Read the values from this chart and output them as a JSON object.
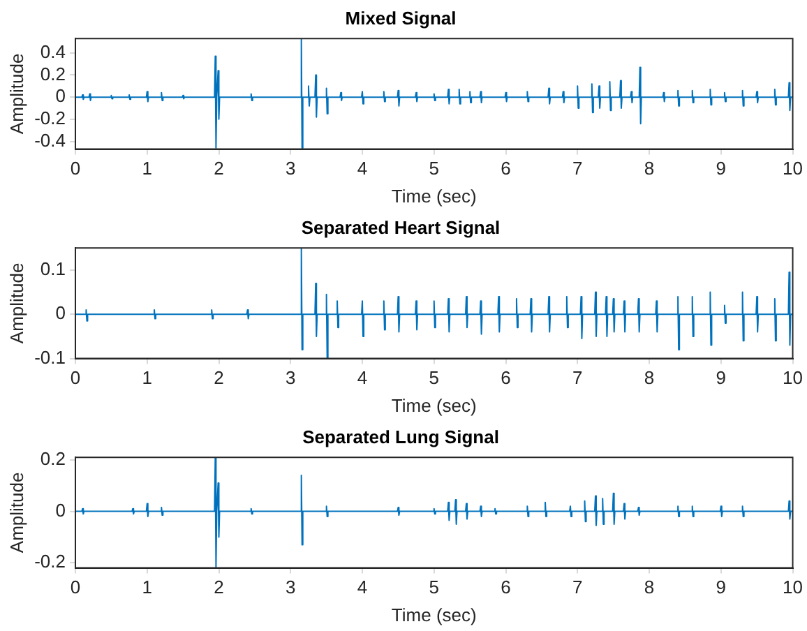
{
  "chart_data": [
    {
      "type": "line",
      "title": "Mixed Signal",
      "xlabel": "Time (sec)",
      "ylabel": "Amplitude",
      "color": "#0072bd",
      "xlim": [
        0,
        10
      ],
      "xticks": [
        0,
        1,
        2,
        3,
        4,
        5,
        6,
        7,
        8,
        9,
        10
      ],
      "ylim": [
        -0.47,
        0.53
      ],
      "yticks": [
        -0.4,
        -0.2,
        0,
        0.2,
        0.4
      ],
      "grid": false,
      "x": [
        0,
        0.09,
        0.1,
        0.11,
        0.12,
        0.19,
        0.2,
        0.21,
        0.22,
        0.49,
        0.5,
        0.51,
        0.52,
        0.74,
        0.75,
        0.76,
        0.77,
        0.99,
        1,
        1.01,
        1.02,
        1.19,
        1.2,
        1.21,
        1.22,
        1.49,
        1.5,
        1.51,
        1.52,
        1.94,
        1.95,
        1.96,
        1.97,
        1.98,
        1.99,
        2,
        2.01,
        2.44,
        2.45,
        2.46,
        2.47,
        3.14,
        3.15,
        3.16,
        3.17,
        3.24,
        3.25,
        3.26,
        3.27,
        3.34,
        3.35,
        3.36,
        3.37,
        3.49,
        3.5,
        3.51,
        3.52,
        3.69,
        3.7,
        3.71,
        3.72,
        3.99,
        4,
        4.01,
        4.02,
        4.29,
        4.3,
        4.31,
        4.32,
        4.49,
        4.5,
        4.51,
        4.52,
        4.74,
        4.75,
        4.76,
        4.77,
        4.99,
        5,
        5.01,
        5.02,
        5.19,
        5.2,
        5.21,
        5.22,
        5.34,
        5.35,
        5.36,
        5.37,
        5.49,
        5.5,
        5.51,
        5.52,
        5.64,
        5.65,
        5.66,
        5.67,
        5.99,
        6,
        6.01,
        6.02,
        6.29,
        6.3,
        6.31,
        6.32,
        6.59,
        6.6,
        6.61,
        6.62,
        6.79,
        6.8,
        6.81,
        6.82,
        6.99,
        7,
        7.01,
        7.02,
        7.19,
        7.2,
        7.21,
        7.22,
        7.29,
        7.3,
        7.31,
        7.32,
        7.44,
        7.45,
        7.46,
        7.47,
        7.59,
        7.6,
        7.61,
        7.62,
        7.74,
        7.75,
        7.76,
        7.77,
        7.86,
        7.87,
        7.88,
        7.89,
        8.19,
        8.2,
        8.21,
        8.22,
        8.39,
        8.4,
        8.41,
        8.42,
        8.59,
        8.6,
        8.61,
        8.62,
        8.84,
        8.85,
        8.86,
        8.87,
        9.04,
        9.05,
        9.06,
        9.07,
        9.29,
        9.3,
        9.31,
        9.32,
        9.49,
        9.5,
        9.51,
        9.52,
        9.74,
        9.75,
        9.76,
        9.77,
        9.94,
        9.95,
        9.96,
        9.97,
        10
      ],
      "values": [
        0,
        0,
        0.02,
        -0.02,
        0,
        0,
        0.03,
        -0.03,
        0,
        0,
        0.015,
        -0.015,
        0,
        0,
        0.02,
        -0.02,
        0,
        0,
        0.05,
        -0.04,
        0,
        0,
        0.04,
        -0.03,
        0,
        0,
        0.015,
        -0.015,
        0,
        0,
        0.37,
        -0.46,
        0,
        0,
        0.24,
        -0.2,
        0,
        0,
        0.03,
        -0.03,
        0,
        0,
        0.53,
        -0.46,
        0,
        0,
        0.1,
        -0.08,
        0,
        0,
        0.2,
        -0.18,
        0,
        0,
        0.08,
        -0.15,
        0,
        0,
        0.04,
        -0.03,
        0,
        0,
        0.05,
        -0.06,
        0,
        0,
        0.05,
        -0.04,
        0,
        0,
        0.06,
        -0.08,
        0,
        0,
        0.04,
        -0.04,
        0,
        0,
        0.03,
        -0.03,
        0,
        0,
        0.07,
        -0.06,
        0,
        0,
        0.07,
        -0.06,
        0,
        0,
        0.05,
        -0.05,
        0,
        0,
        0.05,
        -0.05,
        0,
        0,
        0.04,
        -0.04,
        0,
        0,
        0.05,
        -0.04,
        0,
        0,
        0.08,
        -0.06,
        0,
        0,
        0.05,
        -0.05,
        0,
        0,
        0.1,
        -0.1,
        0,
        0,
        0.12,
        -0.14,
        0,
        0,
        0.1,
        -0.1,
        0,
        0,
        0.14,
        -0.12,
        0,
        0,
        0.15,
        -0.1,
        0,
        0,
        0.05,
        -0.05,
        0,
        0,
        0.27,
        -0.24,
        0,
        0,
        0.04,
        -0.04,
        0,
        0,
        0.06,
        -0.08,
        0,
        0,
        0.06,
        -0.05,
        0,
        0,
        0.07,
        -0.07,
        0,
        0,
        0.04,
        -0.04,
        0,
        0,
        0.06,
        -0.08,
        0,
        0,
        0.05,
        -0.05,
        0,
        0,
        0.07,
        -0.07,
        0,
        0,
        0.13,
        -0.12,
        0,
        0
      ]
    },
    {
      "type": "line",
      "title": "Separated Heart Signal",
      "xlabel": "Time (sec)",
      "ylabel": "Amplitude",
      "color": "#0072bd",
      "xlim": [
        0,
        10
      ],
      "xticks": [
        0,
        1,
        2,
        3,
        4,
        5,
        6,
        7,
        8,
        9,
        10
      ],
      "ylim": [
        -0.1,
        0.15
      ],
      "yticks": [
        -0.1,
        0,
        0.1
      ],
      "grid": false,
      "x": [
        0,
        0.14,
        0.15,
        0.16,
        0.17,
        1.09,
        1.1,
        1.11,
        1.12,
        1.89,
        1.9,
        1.91,
        1.92,
        2.39,
        2.4,
        2.41,
        2.42,
        3.14,
        3.15,
        3.16,
        3.17,
        3.34,
        3.35,
        3.36,
        3.37,
        3.49,
        3.5,
        3.51,
        3.52,
        3.64,
        3.65,
        3.66,
        3.67,
        3.99,
        4,
        4.01,
        4.02,
        4.29,
        4.3,
        4.31,
        4.32,
        4.49,
        4.5,
        4.51,
        4.52,
        4.74,
        4.75,
        4.76,
        4.77,
        4.99,
        5,
        5.01,
        5.02,
        5.19,
        5.2,
        5.21,
        5.22,
        5.44,
        5.45,
        5.46,
        5.47,
        5.64,
        5.65,
        5.66,
        5.67,
        5.89,
        5.9,
        5.91,
        5.92,
        6.14,
        6.15,
        6.16,
        6.17,
        6.34,
        6.35,
        6.36,
        6.37,
        6.59,
        6.6,
        6.61,
        6.62,
        6.84,
        6.85,
        6.86,
        6.87,
        7.04,
        7.05,
        7.06,
        7.07,
        7.24,
        7.25,
        7.26,
        7.27,
        7.39,
        7.4,
        7.41,
        7.42,
        7.49,
        7.5,
        7.51,
        7.52,
        7.64,
        7.65,
        7.66,
        7.67,
        7.84,
        7.85,
        7.86,
        7.87,
        8.09,
        8.1,
        8.11,
        8.12,
        8.39,
        8.4,
        8.41,
        8.42,
        8.59,
        8.6,
        8.61,
        8.62,
        8.84,
        8.85,
        8.86,
        8.87,
        9.04,
        9.05,
        9.06,
        9.07,
        9.29,
        9.3,
        9.31,
        9.32,
        9.49,
        9.5,
        9.51,
        9.52,
        9.74,
        9.75,
        9.76,
        9.77,
        9.94,
        9.95,
        9.96,
        9.97,
        10
      ],
      "values": [
        0,
        0,
        0.01,
        -0.015,
        0,
        0,
        0.01,
        -0.01,
        0,
        0,
        0.01,
        -0.01,
        0,
        0,
        0.01,
        -0.01,
        0,
        0,
        0.15,
        -0.08,
        0,
        0,
        0.07,
        -0.05,
        0,
        0,
        0.045,
        -0.1,
        0,
        0,
        0.03,
        -0.03,
        0,
        0,
        0.03,
        -0.05,
        0,
        0,
        0.03,
        -0.035,
        0,
        0,
        0.04,
        -0.04,
        0,
        0,
        0.03,
        -0.035,
        0,
        0,
        0.03,
        -0.03,
        0,
        0,
        0.035,
        -0.04,
        0,
        0,
        0.04,
        -0.03,
        0,
        0,
        0.03,
        -0.045,
        0,
        0,
        0.04,
        -0.04,
        0,
        0,
        0.035,
        -0.03,
        0,
        0,
        0.035,
        -0.04,
        0,
        0,
        0.04,
        -0.04,
        0,
        0,
        0.04,
        -0.03,
        0,
        0,
        0.04,
        -0.055,
        0,
        0,
        0.05,
        -0.05,
        0,
        0,
        0.04,
        -0.05,
        0,
        0,
        0.035,
        -0.04,
        0,
        0,
        0.03,
        -0.04,
        0,
        0,
        0.035,
        -0.04,
        0,
        0,
        0.03,
        -0.04,
        0,
        0,
        0.04,
        -0.08,
        0,
        0,
        0.04,
        -0.05,
        0,
        0,
        0.05,
        -0.07,
        0,
        0,
        0.02,
        -0.02,
        0,
        0,
        0.05,
        -0.06,
        0,
        0,
        0.04,
        -0.04,
        0,
        0,
        0.035,
        -0.06,
        0,
        0,
        0.095,
        -0.07,
        0,
        0
      ]
    },
    {
      "type": "line",
      "title": "Separated Lung Signal",
      "xlabel": "Time (sec)",
      "ylabel": "Amplitude",
      "color": "#0072bd",
      "xlim": [
        0,
        10
      ],
      "xticks": [
        0,
        1,
        2,
        3,
        4,
        5,
        6,
        7,
        8,
        9,
        10
      ],
      "ylim": [
        -0.22,
        0.21
      ],
      "yticks": [
        -0.2,
        0,
        0.2
      ],
      "grid": false,
      "x": [
        0,
        0.09,
        0.1,
        0.11,
        0.12,
        0.79,
        0.8,
        0.81,
        0.82,
        0.99,
        1,
        1.01,
        1.02,
        1.19,
        1.2,
        1.21,
        1.22,
        1.94,
        1.95,
        1.96,
        1.97,
        1.98,
        1.99,
        2,
        2.01,
        2.44,
        2.45,
        2.46,
        2.47,
        3.14,
        3.15,
        3.16,
        3.17,
        3.49,
        3.5,
        3.51,
        3.52,
        4.49,
        4.5,
        4.51,
        4.52,
        4.99,
        5,
        5.01,
        5.02,
        5.19,
        5.2,
        5.21,
        5.22,
        5.29,
        5.3,
        5.31,
        5.32,
        5.44,
        5.45,
        5.46,
        5.47,
        5.64,
        5.65,
        5.66,
        5.67,
        5.84,
        5.85,
        5.86,
        5.87,
        6.29,
        6.3,
        6.31,
        6.32,
        6.54,
        6.55,
        6.56,
        6.57,
        6.89,
        6.9,
        6.91,
        6.92,
        7.09,
        7.1,
        7.11,
        7.12,
        7.24,
        7.25,
        7.26,
        7.27,
        7.34,
        7.35,
        7.36,
        7.37,
        7.49,
        7.5,
        7.51,
        7.52,
        7.64,
        7.65,
        7.66,
        7.67,
        7.84,
        7.85,
        7.86,
        7.87,
        8.39,
        8.4,
        8.41,
        8.42,
        8.59,
        8.6,
        8.61,
        8.62,
        8.99,
        9,
        9.01,
        9.02,
        9.29,
        9.3,
        9.31,
        9.32,
        9.94,
        9.95,
        9.96,
        9.97,
        10
      ],
      "values": [
        0,
        0,
        0.01,
        -0.01,
        0,
        0,
        0.01,
        -0.01,
        0,
        0,
        0.03,
        -0.02,
        0,
        0,
        0.015,
        -0.015,
        0,
        0,
        0.21,
        -0.22,
        0,
        0,
        0.11,
        -0.1,
        0,
        0,
        0.01,
        -0.01,
        0,
        0,
        0.14,
        -0.13,
        0,
        0,
        0.02,
        -0.02,
        0,
        0,
        0.015,
        -0.015,
        0,
        0,
        0.01,
        -0.01,
        0,
        0,
        0.035,
        -0.035,
        0,
        0,
        0.045,
        -0.05,
        0,
        0,
        0.03,
        -0.03,
        0,
        0,
        0.02,
        -0.02,
        0,
        0,
        0.01,
        -0.01,
        0,
        0,
        0.02,
        -0.02,
        0,
        0,
        0.035,
        -0.02,
        0,
        0,
        0.02,
        -0.02,
        0,
        0,
        0.04,
        -0.04,
        0,
        0,
        0.06,
        -0.055,
        0,
        0,
        0.05,
        -0.05,
        0,
        0,
        0.07,
        -0.05,
        0,
        0,
        0.03,
        -0.03,
        0,
        0,
        0.015,
        -0.015,
        0,
        0,
        0.02,
        -0.02,
        0,
        0,
        0.02,
        -0.02,
        0,
        0,
        0.02,
        -0.02,
        0,
        0,
        0.02,
        -0.02,
        0,
        0,
        0.04,
        -0.03,
        0,
        0
      ]
    }
  ]
}
